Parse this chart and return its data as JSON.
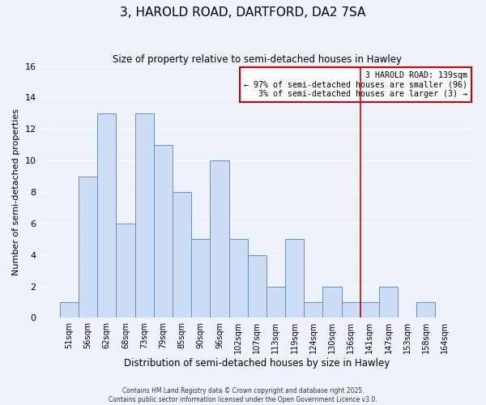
{
  "title": "3, HAROLD ROAD, DARTFORD, DA2 7SA",
  "subtitle": "Size of property relative to semi-detached houses in Hawley",
  "xlabel": "Distribution of semi-detached houses by size in Hawley",
  "ylabel": "Number of semi-detached properties",
  "bar_labels": [
    "51sqm",
    "56sqm",
    "62sqm",
    "68sqm",
    "73sqm",
    "79sqm",
    "85sqm",
    "90sqm",
    "96sqm",
    "102sqm",
    "107sqm",
    "113sqm",
    "119sqm",
    "124sqm",
    "130sqm",
    "136sqm",
    "141sqm",
    "147sqm",
    "153sqm",
    "158sqm",
    "164sqm"
  ],
  "bar_values": [
    1,
    9,
    13,
    6,
    13,
    11,
    8,
    5,
    10,
    5,
    4,
    2,
    5,
    1,
    2,
    1,
    1,
    2,
    0,
    1,
    0
  ],
  "bar_color": "#ccddf5",
  "bar_edge_color": "#6090c8",
  "vline_color": "#cc0000",
  "vline_index": 16,
  "annotation_title": "3 HAROLD ROAD: 139sqm",
  "annotation_line1": "← 97% of semi-detached houses are smaller (96)",
  "annotation_line2": "3% of semi-detached houses are larger (3) →",
  "annotation_box_edge_color": "#cc0000",
  "ylim": [
    0,
    16
  ],
  "yticks": [
    0,
    2,
    4,
    6,
    8,
    10,
    12,
    14,
    16
  ],
  "footer1": "Contains HM Land Registry data © Crown copyright and database right 2025.",
  "footer2": "Contains public sector information licensed under the Open Government Licence v3.0.",
  "background_color": "#eef2fa",
  "grid_color": "#ffffff"
}
